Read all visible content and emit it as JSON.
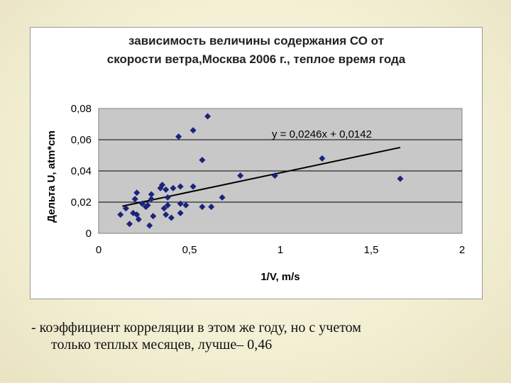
{
  "colors": {
    "marker": "#1a237e",
    "trendline": "#000000",
    "plot_bg": "#c8c8c8",
    "frame": "#ffffff"
  },
  "chart_data": {
    "type": "scatter",
    "title_line1": "зависимость величины содержания СО от",
    "title_line2": "скорости ветра,Москва 2006 г., теплое время года",
    "xlabel": "1/V, m/s",
    "ylabel": "Дельта U, atm*cm",
    "xlim": [
      0,
      2
    ],
    "ylim": [
      0,
      0.08
    ],
    "x_ticks": [
      "0",
      "0,5",
      "1",
      "1,5",
      "2"
    ],
    "y_ticks": [
      "0",
      "0,02",
      "0,04",
      "0,06",
      "0,08"
    ],
    "grid": "horizontal",
    "legend": "none",
    "trendline": {
      "equation": "y = 0,0246x + 0,0142",
      "slope": 0.0246,
      "intercept": 0.0142,
      "x_range": [
        0.13,
        1.66
      ]
    },
    "points": [
      [
        0.12,
        0.012
      ],
      [
        0.15,
        0.016
      ],
      [
        0.17,
        0.006
      ],
      [
        0.19,
        0.013
      ],
      [
        0.2,
        0.022
      ],
      [
        0.21,
        0.026
      ],
      [
        0.21,
        0.012
      ],
      [
        0.22,
        0.009
      ],
      [
        0.24,
        0.019
      ],
      [
        0.26,
        0.017
      ],
      [
        0.27,
        0.018
      ],
      [
        0.28,
        0.005
      ],
      [
        0.29,
        0.022
      ],
      [
        0.29,
        0.025
      ],
      [
        0.3,
        0.011
      ],
      [
        0.34,
        0.029
      ],
      [
        0.35,
        0.031
      ],
      [
        0.36,
        0.016
      ],
      [
        0.37,
        0.028
      ],
      [
        0.37,
        0.012
      ],
      [
        0.38,
        0.018
      ],
      [
        0.38,
        0.023
      ],
      [
        0.4,
        0.01
      ],
      [
        0.41,
        0.029
      ],
      [
        0.44,
        0.062
      ],
      [
        0.45,
        0.03
      ],
      [
        0.45,
        0.013
      ],
      [
        0.45,
        0.019
      ],
      [
        0.48,
        0.018
      ],
      [
        0.52,
        0.066
      ],
      [
        0.52,
        0.03
      ],
      [
        0.57,
        0.047
      ],
      [
        0.57,
        0.017
      ],
      [
        0.6,
        0.075
      ],
      [
        0.62,
        0.017
      ],
      [
        0.68,
        0.023
      ],
      [
        0.78,
        0.037
      ],
      [
        0.97,
        0.037
      ],
      [
        1.23,
        0.048
      ],
      [
        1.66,
        0.035
      ]
    ]
  },
  "caption": {
    "line1": "- коэффициент корреляции в этом же году, но с учетом",
    "line2": "только теплых месяцев, лучше– 0,46"
  }
}
